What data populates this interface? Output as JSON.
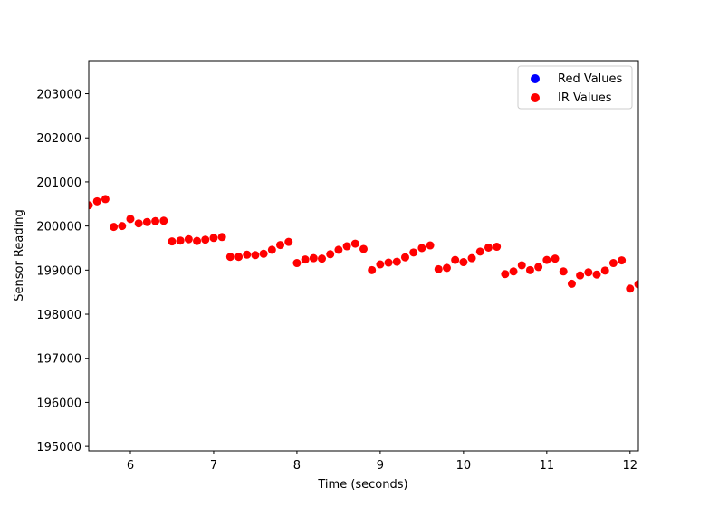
{
  "chart_data": {
    "type": "scatter",
    "title": "",
    "xlabel": "Time (seconds)",
    "ylabel": "Sensor Reading",
    "xlim": [
      5.5,
      12.1
    ],
    "ylim": [
      194900,
      203750
    ],
    "xticks": [
      6,
      7,
      8,
      9,
      10,
      11,
      12
    ],
    "yticks": [
      195000,
      196000,
      197000,
      198000,
      199000,
      200000,
      201000,
      202000,
      203000
    ],
    "grid": false,
    "legend_position": "top-right",
    "series": [
      {
        "name": "Red Values",
        "color": "#0000ff",
        "x": [],
        "y": []
      },
      {
        "name": "IR Values",
        "color": "#ff0000",
        "x": [
          5.5,
          5.6,
          5.7,
          5.8,
          5.9,
          6.0,
          6.1,
          6.2,
          6.3,
          6.4,
          6.5,
          6.6,
          6.7,
          6.8,
          6.9,
          7.0,
          7.1,
          7.2,
          7.3,
          7.4,
          7.5,
          7.6,
          7.7,
          7.8,
          7.9,
          8.0,
          8.1,
          8.2,
          8.3,
          8.4,
          8.5,
          8.6,
          8.7,
          8.8,
          8.9,
          9.0,
          9.1,
          9.2,
          9.3,
          9.4,
          9.5,
          9.6,
          9.7,
          9.8,
          9.9,
          10.0,
          10.1,
          10.2,
          10.3,
          10.4,
          10.5,
          10.6,
          10.7,
          10.8,
          10.9,
          11.0,
          11.1,
          11.2,
          11.3,
          11.4,
          11.5,
          11.6,
          11.7,
          11.8,
          11.9,
          12.0,
          12.1
        ],
        "y": [
          200470,
          200560,
          200610,
          199980,
          200000,
          200160,
          200060,
          200090,
          200110,
          200120,
          199650,
          199670,
          199700,
          199660,
          199690,
          199730,
          199750,
          199300,
          199300,
          199350,
          199340,
          199370,
          199460,
          199570,
          199640,
          199160,
          199240,
          199270,
          199260,
          199360,
          199460,
          199540,
          199600,
          199480,
          199000,
          199130,
          199170,
          199190,
          199290,
          199400,
          199500,
          199560,
          199020,
          199050,
          199230,
          199180,
          199270,
          199420,
          199510,
          199530,
          198910,
          198970,
          199110,
          199000,
          199070,
          199230,
          199260,
          198970,
          198690,
          198880,
          198950,
          198900,
          198990,
          199160,
          199220,
          198580,
          198680
        ]
      }
    ]
  },
  "legend": {
    "items": [
      {
        "label": "Red Values",
        "color": "#0000ff"
      },
      {
        "label": "IR Values",
        "color": "#ff0000"
      }
    ]
  }
}
